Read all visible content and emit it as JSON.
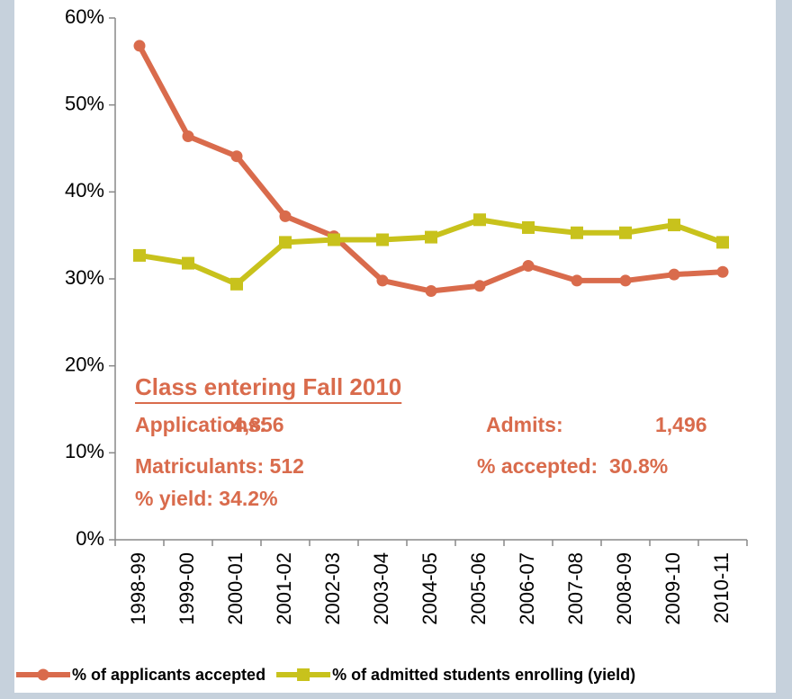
{
  "chart_data": {
    "type": "line",
    "categories": [
      "1998-99",
      "1999-00",
      "2000-01",
      "2001-02",
      "2002-03",
      "2003-04",
      "2004-05",
      "2005-06",
      "2006-07",
      "2007-08",
      "2008-09",
      "2009-10",
      "2010-11"
    ],
    "series": [
      {
        "name": "% of applicants accepted",
        "color": "#d96b4c",
        "marker": "circle",
        "values": [
          56.8,
          46.4,
          44.1,
          37.2,
          34.9,
          29.8,
          28.6,
          29.2,
          31.5,
          29.8,
          29.8,
          30.5,
          30.8
        ]
      },
      {
        "name": "% of admitted students enrolling (yield)",
        "color": "#c8c21c",
        "marker": "square",
        "values": [
          32.7,
          31.8,
          29.4,
          34.2,
          34.5,
          34.5,
          34.8,
          36.8,
          35.9,
          35.3,
          35.3,
          36.2,
          34.2
        ]
      }
    ],
    "ylim": [
      0,
      60
    ],
    "yticks": [
      {
        "value": 0,
        "label": "0%"
      },
      {
        "value": 10,
        "label": "10%"
      },
      {
        "value": 20,
        "label": "20%"
      },
      {
        "value": 30,
        "label": "30%"
      },
      {
        "value": 40,
        "label": "40%"
      },
      {
        "value": 50,
        "label": "50%"
      },
      {
        "value": 60,
        "label": "60%"
      }
    ],
    "legend": "bottom",
    "annotation_color": "#d96b4c",
    "annotations": [
      "Class entering Fall 2010",
      "Applications:",
      "4,856",
      "Admits:",
      "1,496",
      "Matriculants: 512",
      "% accepted:  30.8%",
      "% yield: 34.2%"
    ]
  }
}
